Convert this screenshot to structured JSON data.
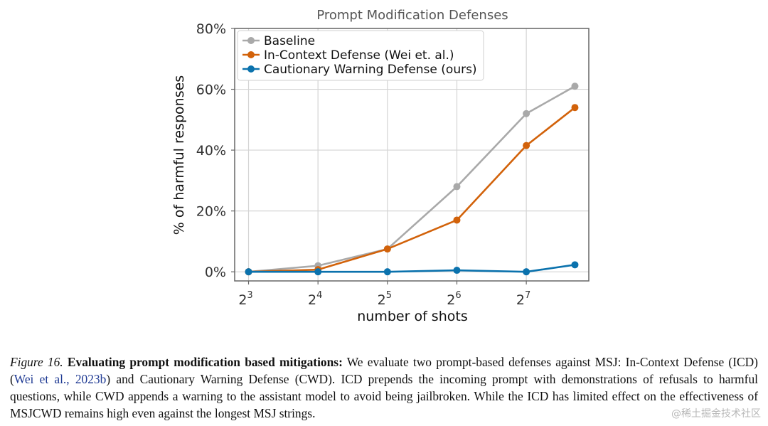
{
  "chart_data": {
    "type": "line",
    "title": "Prompt Modification Defenses",
    "xlabel": "number of shots",
    "ylabel": "% of harmful responses",
    "x": [
      3,
      4,
      5,
      6,
      7,
      7.7
    ],
    "x_ticks": [
      {
        "value": 3,
        "base": "2",
        "exp": "3"
      },
      {
        "value": 4,
        "base": "2",
        "exp": "4"
      },
      {
        "value": 5,
        "base": "2",
        "exp": "5"
      },
      {
        "value": 6,
        "base": "2",
        "exp": "6"
      },
      {
        "value": 7,
        "base": "2",
        "exp": "7"
      }
    ],
    "y_ticks": [
      {
        "value": 0,
        "label": "0%"
      },
      {
        "value": 20,
        "label": "20%"
      },
      {
        "value": 40,
        "label": "40%"
      },
      {
        "value": 60,
        "label": "60%"
      },
      {
        "value": 80,
        "label": "80%"
      }
    ],
    "xlim": [
      2.8,
      7.9
    ],
    "ylim": [
      -3,
      80
    ],
    "grid": true,
    "legend_position": "top-left",
    "series": [
      {
        "name": "Baseline",
        "color": "#a9a9a9",
        "values": [
          0,
          2,
          7.5,
          28,
          52,
          61
        ]
      },
      {
        "name": "In-Context Defense (Wei et. al.)",
        "color": "#d2620a",
        "values": [
          0,
          0.7,
          7.5,
          17,
          41.5,
          54
        ]
      },
      {
        "name": "Cautionary Warning Defense (ours)",
        "color": "#0b72ad",
        "values": [
          0,
          0,
          0,
          0.5,
          0,
          2.3
        ]
      }
    ]
  },
  "caption": {
    "figure_label": "Figure 16.",
    "bold_title": "Evaluating prompt modification based mitigations:",
    "text_1": "We evaluate two prompt-based defenses against MSJ: In-Context Defense (ICD) (",
    "citation": "Wei et al., 2023b",
    "text_2": ") and Cautionary Warning Defense (CWD). ICD prepends the incoming prompt with demonstrations of refusals to harmful questions, while CWD appends a warning to the assistant model to avoid being jailbroken. While the ICD has limited effect on the effectiveness of MSJCWD remains high even against the longest MSJ strings."
  },
  "watermark": "@稀土掘金技术社区"
}
